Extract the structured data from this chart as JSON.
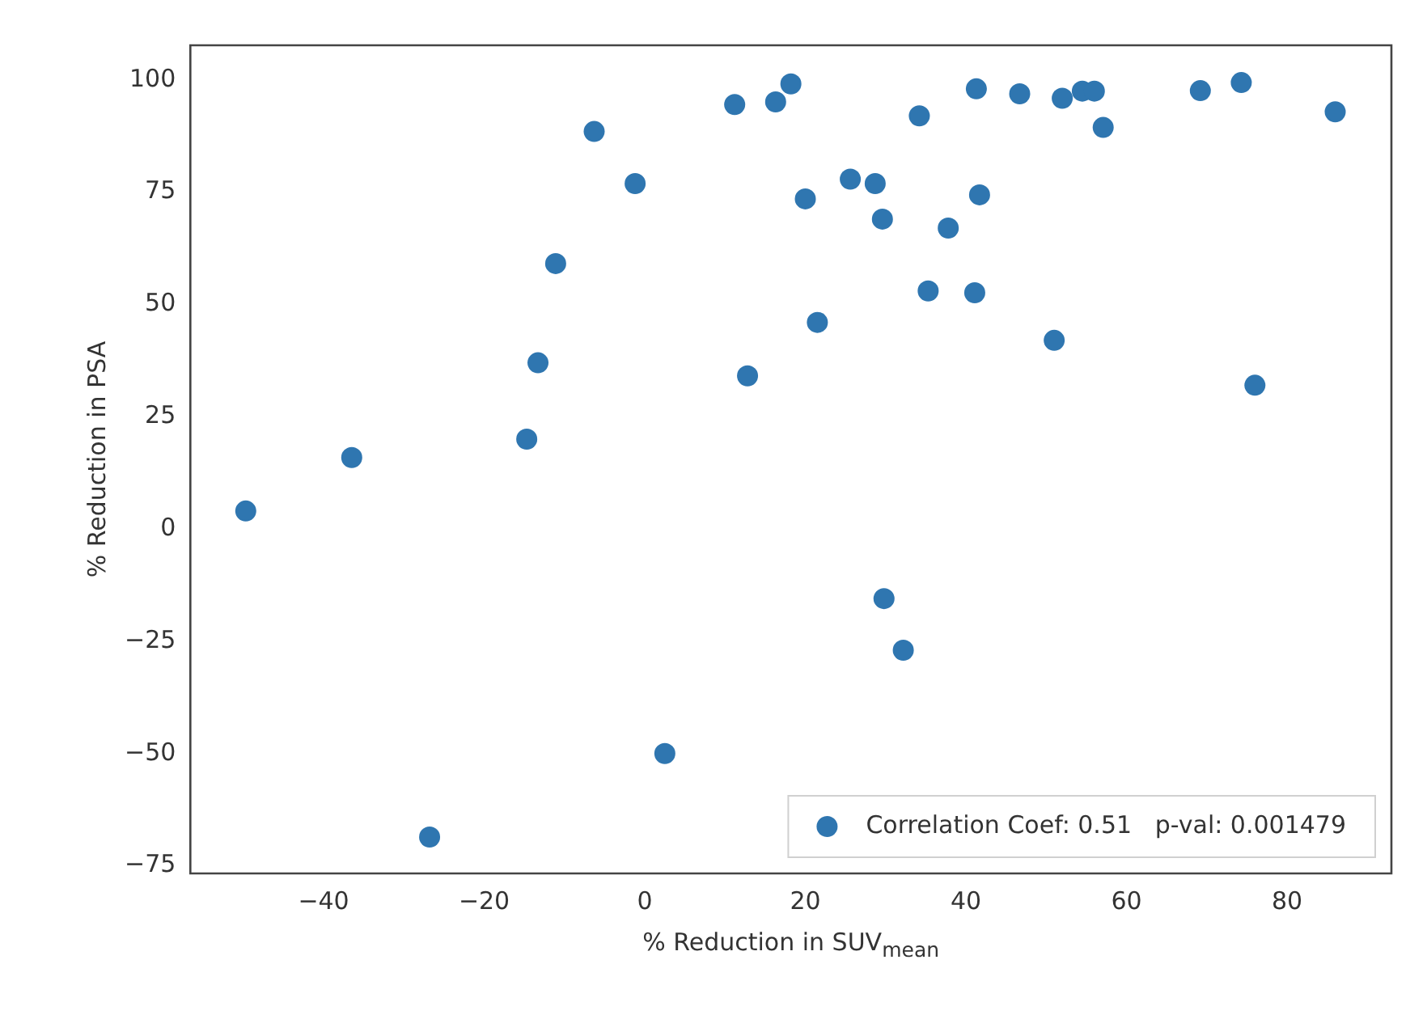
{
  "chart_data": {
    "type": "scatter",
    "xlabel": "% Reduction in SUV$_{mean}$",
    "ylabel": "% Reduction in PSA",
    "x": [
      -49.7,
      -36.5,
      -14.7,
      -13.3,
      -11.1,
      -6.3,
      -1.2,
      2.5,
      -26.8,
      11.2,
      16.3,
      18.2,
      12.8,
      20.0,
      25.6,
      28.7,
      29.6,
      34.2,
      37.8,
      35.3,
      41.1,
      41.7,
      41.3,
      21.5,
      46.7,
      51.0,
      52.0,
      54.5,
      56.0,
      57.1,
      69.2,
      74.3,
      86.0,
      76.0,
      29.8,
      32.2
    ],
    "series": [
      {
        "name": "Correlation Coef: 0.51   p-val: 0.001479",
        "color": "#2f76b0",
        "values": [
          4.0,
          15.9,
          20.0,
          37.0,
          59.1,
          88.5,
          76.9,
          -50,
          -68.6,
          94.5,
          95.1,
          99.1,
          34.1,
          73.5,
          77.9,
          76.9,
          69.0,
          92.0,
          67.0,
          53.0,
          52.6,
          74.4,
          98.0,
          46.0,
          96.9,
          42.0,
          95.9,
          97.5,
          97.5,
          89.4,
          97.6,
          99.4,
          92.9,
          32.0,
          -15.5,
          -27.0
        ]
      }
    ],
    "xlim": [
      -56.6,
      93
    ],
    "ylim": [
      -76.7,
      107.7
    ],
    "xticks": [
      -40,
      -20,
      0,
      20,
      40,
      60,
      80
    ],
    "yticks": [
      -75,
      -50,
      -25,
      0,
      25,
      50,
      75,
      100
    ],
    "grid": false,
    "legend": "bottom right",
    "marker": "circle"
  }
}
